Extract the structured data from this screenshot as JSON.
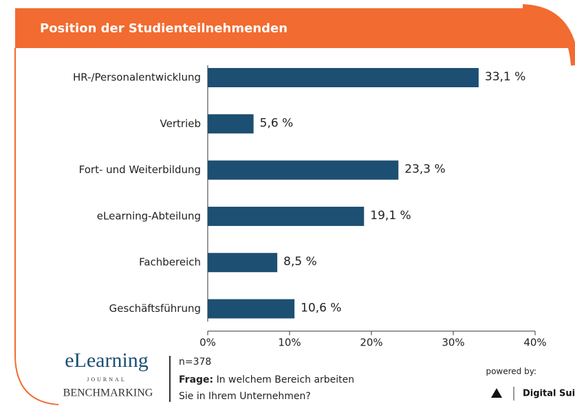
{
  "chart_data": {
    "type": "bar",
    "orientation": "horizontal",
    "title": "Position der Studienteilnehmenden",
    "categories": [
      "HR-/Personalentwicklung",
      "Vertrieb",
      "Fort- und Weiterbildung",
      "eLearning-Abteilung",
      "Fachbereich",
      "Geschäftsführung"
    ],
    "values": [
      33.1,
      5.6,
      23.3,
      19.1,
      8.5,
      10.6
    ],
    "value_labels": [
      "33,1 %",
      "5,6 %",
      "23,3 %",
      "19,1 %",
      "8,5 %",
      "10,6 %"
    ],
    "color": "#1c4f72",
    "xlim": [
      0,
      40
    ],
    "xticks": [
      {
        "value": 0,
        "label": "0%"
      },
      {
        "value": 10,
        "label": "10%"
      },
      {
        "value": 20,
        "label": "20%"
      },
      {
        "value": 30,
        "label": "30%"
      },
      {
        "value": 40,
        "label": "40%"
      }
    ],
    "grid": false
  },
  "footer": {
    "logo": [
      "eLearning",
      "JOURNAL",
      "BENCHMARKING"
    ],
    "n": "n=378",
    "question_label": "Frage:",
    "question_lines": [
      "In welchem Bereich arbeiten",
      "Sie in Ihrem Unternehmen?"
    ],
    "powered_by": "powered by:",
    "brand": "Digital Suite"
  }
}
